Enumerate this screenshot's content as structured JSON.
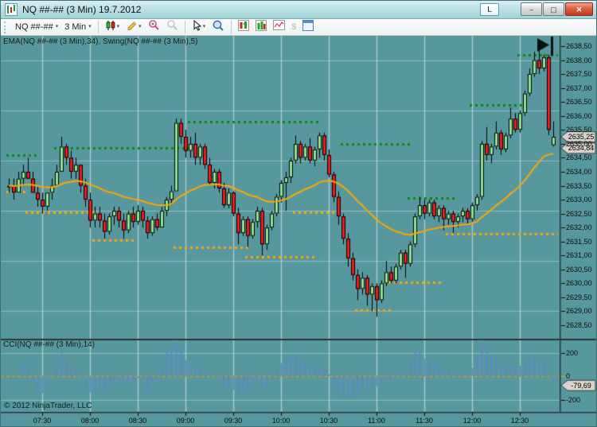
{
  "window": {
    "title": "NQ ##-## (3 Min)  19.7.2012",
    "link_button": "L"
  },
  "icons": {
    "dropdown": "▾",
    "minimize": "–",
    "maximize": "▢",
    "close": "✕",
    "dollar": "$"
  },
  "toolbar": {
    "instrument": "NQ ##-##",
    "interval": "3 Min"
  },
  "panels": {
    "main_label": "EMA(NQ ##-## (3 Min),34), Swing(NQ ##-## (3 Min),5)",
    "cci_label": "CCI(NQ ##-## (3 Min),14)",
    "copyright": "© 2012 NinjaTrader, LLC"
  },
  "markers": {
    "last_price": "2635,25",
    "ema_value": "2634,84",
    "cci_value": "-79,69"
  },
  "colors": {
    "background": "#57989e",
    "grid_vertical": "rgba(235,246,246,0.55)",
    "grid_horizontal": "rgba(235,246,246,0.38)",
    "candle_up": "#8ee690",
    "candle_down": "#ee1c1c",
    "candle_outline": "#000000",
    "ema": "#ffa500",
    "swing_high": "#0b8a0b",
    "swing_low": "#ffa500",
    "cci_bars": "#5f85cf",
    "zero_line": "#cc9922",
    "marker_bg": "#d8d4cc",
    "separator": "#283638",
    "flag": "#101010"
  },
  "chart_data": {
    "type": "candlestick",
    "title": "NQ ##-## (3 Min) 19.7.2012",
    "interval_minutes": 3,
    "start_time": "07:09",
    "price_axis": {
      "min": 2628.5,
      "max": 2638.5,
      "tick": 0.5,
      "labels": [
        "2638,50",
        "2638,00",
        "2637,50",
        "2637,00",
        "2636,50",
        "2636,00",
        "2635,50",
        "2635,00",
        "2634,50",
        "2634,00",
        "2633,50",
        "2633,00",
        "2632,50",
        "2632,00",
        "2631,50",
        "2631,00",
        "2630,50",
        "2630,00",
        "2629,50",
        "2629,00",
        "2628,50"
      ]
    },
    "time_labels": [
      "07:30",
      "08:00",
      "08:30",
      "09:00",
      "09:30",
      "10:00",
      "10:30",
      "11:00",
      "11:30",
      "12:00",
      "12:30"
    ],
    "candles": [
      [
        2633.5,
        2633.75,
        2633.25,
        2633.5
      ],
      [
        2633.5,
        2633.75,
        2633.0,
        2633.25
      ],
      [
        2633.25,
        2634.0,
        2633.25,
        2633.75
      ],
      [
        2633.75,
        2634.25,
        2633.5,
        2634.0
      ],
      [
        2634.0,
        2634.5,
        2633.75,
        2633.75
      ],
      [
        2633.75,
        2634.0,
        2633.25,
        2633.25
      ],
      [
        2633.25,
        2633.5,
        2632.75,
        2633.0
      ],
      [
        2633.0,
        2633.25,
        2632.5,
        2632.75
      ],
      [
        2632.75,
        2633.25,
        2632.6,
        2633.25
      ],
      [
        2633.25,
        2633.75,
        2633.0,
        2633.5
      ],
      [
        2633.5,
        2634.25,
        2633.5,
        2634.0
      ],
      [
        2634.0,
        2635.25,
        2634.0,
        2634.9
      ],
      [
        2634.9,
        2635.0,
        2634.25,
        2634.5
      ],
      [
        2634.5,
        2634.75,
        2633.75,
        2634.0
      ],
      [
        2634.0,
        2634.5,
        2633.75,
        2634.25
      ],
      [
        2634.25,
        2634.25,
        2633.25,
        2633.5
      ],
      [
        2633.5,
        2633.75,
        2632.75,
        2633.0
      ],
      [
        2633.0,
        2633.25,
        2632.0,
        2632.25
      ],
      [
        2632.25,
        2632.75,
        2632.0,
        2632.5
      ],
      [
        2632.5,
        2632.75,
        2632.0,
        2632.25
      ],
      [
        2632.25,
        2632.5,
        2631.6,
        2631.85
      ],
      [
        2631.85,
        2632.5,
        2631.75,
        2632.4
      ],
      [
        2632.4,
        2632.75,
        2632.1,
        2632.6
      ],
      [
        2632.6,
        2632.75,
        2632.0,
        2632.25
      ],
      [
        2632.25,
        2632.5,
        2631.6,
        2631.9
      ],
      [
        2631.9,
        2632.6,
        2631.8,
        2632.5
      ],
      [
        2632.5,
        2632.75,
        2632.0,
        2632.2
      ],
      [
        2632.2,
        2632.8,
        2632.1,
        2632.6
      ],
      [
        2632.6,
        2632.75,
        2632.0,
        2632.25
      ],
      [
        2632.25,
        2632.4,
        2631.6,
        2631.8
      ],
      [
        2631.8,
        2632.4,
        2631.7,
        2632.3
      ],
      [
        2632.3,
        2632.5,
        2631.9,
        2632.0
      ],
      [
        2632.0,
        2632.75,
        2632.0,
        2632.6
      ],
      [
        2632.6,
        2633.1,
        2632.4,
        2633.0
      ],
      [
        2633.0,
        2633.5,
        2632.8,
        2633.3
      ],
      [
        2633.3,
        2635.9,
        2633.3,
        2635.75
      ],
      [
        2635.75,
        2635.9,
        2635.0,
        2635.25
      ],
      [
        2635.25,
        2635.5,
        2634.5,
        2634.75
      ],
      [
        2634.75,
        2635.25,
        2634.5,
        2635.0
      ],
      [
        2635.0,
        2635.4,
        2634.25,
        2634.5
      ],
      [
        2634.5,
        2635.0,
        2634.25,
        2634.9
      ],
      [
        2634.9,
        2635.0,
        2634.1,
        2634.25
      ],
      [
        2634.25,
        2634.5,
        2633.5,
        2633.6
      ],
      [
        2633.6,
        2634.1,
        2633.4,
        2634.0
      ],
      [
        2634.0,
        2634.1,
        2633.25,
        2633.4
      ],
      [
        2633.4,
        2633.6,
        2632.7,
        2632.8
      ],
      [
        2632.8,
        2633.4,
        2632.7,
        2633.25
      ],
      [
        2633.25,
        2633.3,
        2632.4,
        2632.5
      ],
      [
        2632.5,
        2632.7,
        2631.4,
        2631.8
      ],
      [
        2631.8,
        2632.4,
        2631.7,
        2632.3
      ],
      [
        2632.3,
        2632.4,
        2631.3,
        2631.7
      ],
      [
        2631.7,
        2632.3,
        2631.6,
        2632.2
      ],
      [
        2632.2,
        2632.75,
        2632.0,
        2632.6
      ],
      [
        2632.6,
        2632.7,
        2631.0,
        2631.4
      ],
      [
        2631.4,
        2632.1,
        2631.2,
        2632.0
      ],
      [
        2632.0,
        2632.6,
        2631.9,
        2632.5
      ],
      [
        2632.5,
        2633.2,
        2632.4,
        2633.1
      ],
      [
        2633.1,
        2633.7,
        2632.9,
        2633.6
      ],
      [
        2633.6,
        2634.0,
        2632.6,
        2633.8
      ],
      [
        2633.8,
        2634.5,
        2633.6,
        2634.4
      ],
      [
        2634.4,
        2635.3,
        2634.3,
        2635.0
      ],
      [
        2635.0,
        2635.1,
        2634.3,
        2634.5
      ],
      [
        2634.5,
        2635.0,
        2634.4,
        2634.9
      ],
      [
        2634.9,
        2635.2,
        2634.3,
        2634.4
      ],
      [
        2634.4,
        2634.9,
        2634.2,
        2634.8
      ],
      [
        2634.8,
        2635.4,
        2634.5,
        2635.3
      ],
      [
        2635.3,
        2635.4,
        2634.4,
        2634.6
      ],
      [
        2634.6,
        2634.8,
        2633.8,
        2633.9
      ],
      [
        2633.9,
        2634.0,
        2632.9,
        2633.1
      ],
      [
        2633.1,
        2633.3,
        2632.1,
        2632.4
      ],
      [
        2632.4,
        2632.5,
        2631.4,
        2631.6
      ],
      [
        2631.6,
        2631.8,
        2630.6,
        2630.9
      ],
      [
        2630.9,
        2631.1,
        2630.1,
        2630.3
      ],
      [
        2630.3,
        2630.5,
        2629.4,
        2629.8
      ],
      [
        2629.8,
        2630.4,
        2629.6,
        2630.2
      ],
      [
        2630.2,
        2630.3,
        2629.2,
        2629.6
      ],
      [
        2629.6,
        2630.0,
        2629.0,
        2629.9
      ],
      [
        2629.9,
        2630.0,
        2628.8,
        2629.4
      ],
      [
        2629.4,
        2630.1,
        2629.3,
        2630.0
      ],
      [
        2630.0,
        2630.8,
        2629.9,
        2630.4
      ],
      [
        2630.4,
        2630.6,
        2630.0,
        2630.1
      ],
      [
        2630.1,
        2630.7,
        2630.0,
        2630.6
      ],
      [
        2630.6,
        2631.2,
        2630.5,
        2631.1
      ],
      [
        2631.1,
        2631.2,
        2630.2,
        2630.7
      ],
      [
        2630.7,
        2631.5,
        2630.6,
        2631.4
      ],
      [
        2631.4,
        2632.5,
        2631.3,
        2632.4
      ],
      [
        2632.4,
        2633.1,
        2632.3,
        2632.8
      ],
      [
        2632.8,
        2633.0,
        2632.3,
        2632.5
      ],
      [
        2632.5,
        2633.0,
        2632.4,
        2632.9
      ],
      [
        2632.9,
        2633.0,
        2632.3,
        2632.4
      ],
      [
        2632.4,
        2632.8,
        2632.2,
        2632.7
      ],
      [
        2632.7,
        2632.8,
        2631.9,
        2632.3
      ],
      [
        2632.3,
        2632.6,
        2632.1,
        2632.5
      ],
      [
        2632.5,
        2632.6,
        2631.8,
        2632.2
      ],
      [
        2632.2,
        2632.5,
        2632.0,
        2632.4
      ],
      [
        2632.4,
        2632.7,
        2632.2,
        2632.6
      ],
      [
        2632.6,
        2632.7,
        2632.1,
        2632.3
      ],
      [
        2632.3,
        2632.9,
        2632.2,
        2632.8
      ],
      [
        2632.8,
        2633.2,
        2632.6,
        2633.1
      ],
      [
        2633.1,
        2635.1,
        2633.0,
        2635.0
      ],
      [
        2635.0,
        2635.6,
        2634.4,
        2634.6
      ],
      [
        2634.6,
        2635.0,
        2634.3,
        2634.9
      ],
      [
        2634.9,
        2635.8,
        2634.8,
        2635.4
      ],
      [
        2635.4,
        2635.5,
        2634.6,
        2634.8
      ],
      [
        2634.8,
        2635.4,
        2634.7,
        2635.3
      ],
      [
        2635.3,
        2636.3,
        2635.2,
        2635.9
      ],
      [
        2635.9,
        2636.1,
        2635.4,
        2635.5
      ],
      [
        2635.5,
        2636.2,
        2635.4,
        2636.1
      ],
      [
        2636.1,
        2636.9,
        2636.0,
        2636.8
      ],
      [
        2636.8,
        2637.7,
        2636.7,
        2637.5
      ],
      [
        2637.5,
        2638.3,
        2637.4,
        2638.0
      ],
      [
        2638.0,
        2638.4,
        2637.5,
        2637.7
      ],
      [
        2637.7,
        2638.2,
        2637.6,
        2638.1
      ],
      [
        2638.1,
        2638.2,
        2635.3,
        2635.5
      ],
      [
        2634.95,
        2635.8,
        2634.9,
        2635.25
      ]
    ],
    "indicators": {
      "ema": {
        "period": 34,
        "last_value": 2634.84
      },
      "swing": {
        "period": 5,
        "high_segments": [
          {
            "price": 2634.6,
            "from": 0,
            "to": 6
          },
          {
            "price": 2634.85,
            "from": 10,
            "to": 40
          },
          {
            "price": 2635.8,
            "from": 38,
            "to": 65
          },
          {
            "price": 2635.0,
            "from": 70,
            "to": 84
          },
          {
            "price": 2633.05,
            "from": 84,
            "to": 93
          },
          {
            "price": 2636.4,
            "from": 97,
            "to": 107
          },
          {
            "price": 2638.2,
            "from": 107,
            "to": 114.5
          }
        ],
        "low_segments": [
          {
            "price": 2633.3,
            "from": 0,
            "to": 3
          },
          {
            "price": 2632.55,
            "from": 4,
            "to": 18
          },
          {
            "price": 2631.55,
            "from": 18,
            "to": 26
          },
          {
            "price": 2631.3,
            "from": 35,
            "to": 50
          },
          {
            "price": 2630.95,
            "from": 50,
            "to": 64
          },
          {
            "price": 2632.55,
            "from": 60,
            "to": 69
          },
          {
            "price": 2629.05,
            "from": 73,
            "to": 80
          },
          {
            "price": 2630.05,
            "from": 80,
            "to": 90
          },
          {
            "price": 2631.78,
            "from": 92,
            "to": 116
          }
        ]
      },
      "cci": {
        "period": 14,
        "axis_labels": [
          "200",
          "0",
          "-200"
        ],
        "axis_values": [
          200,
          0,
          -200
        ],
        "last_value": -79.69
      }
    },
    "last_price": 2635.25,
    "flag_marker_bar": 112
  }
}
